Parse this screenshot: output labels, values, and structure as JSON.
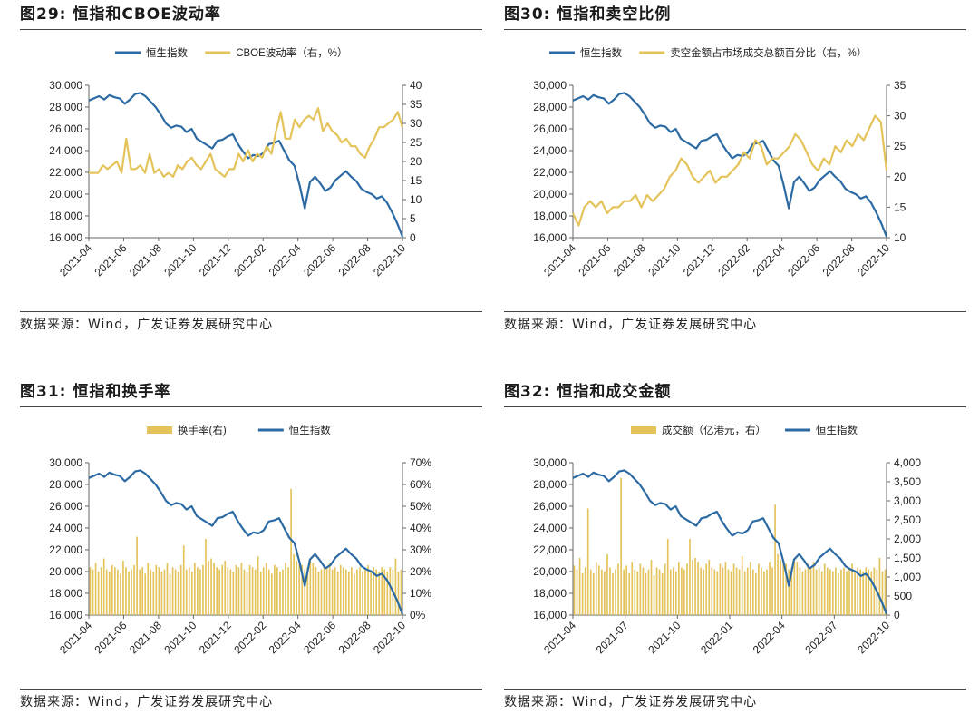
{
  "colors": {
    "blue": "#2b6aa3",
    "gold": "#e3c35a"
  },
  "panels": [
    {
      "title": "图29: 恒指和CBOE波动率",
      "source": "数据来源：Wind，广发证券发展研究中心",
      "chart_data": {
        "type": "line",
        "x_ticks": [
          "2021-04",
          "2021-06",
          "2021-08",
          "2021-10",
          "2021-12",
          "2022-02",
          "2022-04",
          "2022-06",
          "2022-08",
          "2022-10"
        ],
        "y_left": {
          "min": 16000,
          "max": 30000,
          "ticks": [
            "30,000",
            "28,000",
            "26,000",
            "24,000",
            "22,000",
            "20,000",
            "18,000",
            "16,000"
          ]
        },
        "y_right": {
          "min": 0,
          "max": 40,
          "ticks": [
            "40",
            "35",
            "30",
            "25",
            "20",
            "15",
            "10",
            "5",
            "0"
          ]
        },
        "series": [
          {
            "name": "恒生指数",
            "type": "line",
            "axis": "left",
            "color": "#2b6aa3",
            "values": [
              28600,
              28800,
              29000,
              28700,
              29100,
              28900,
              28800,
              28300,
              28700,
              29200,
              29300,
              29000,
              28500,
              28000,
              27300,
              26500,
              26100,
              26300,
              26200,
              25700,
              26000,
              25100,
              24800,
              24500,
              24200,
              24900,
              25000,
              25300,
              25500,
              24600,
              23900,
              23300,
              23600,
              23500,
              23800,
              24600,
              24700,
              24900,
              24000,
              23100,
              22600,
              20800,
              18700,
              21100,
              21600,
              21000,
              20300,
              20600,
              21300,
              21700,
              22100,
              21600,
              21200,
              20500,
              20200,
              20000,
              19600,
              19800,
              19200,
              18300,
              17300,
              16100
            ]
          },
          {
            "name": "CBOE波动率（右，%）",
            "type": "line",
            "axis": "right",
            "color": "#e3c35a",
            "values": [
              17,
              17,
              17,
              19,
              18,
              19,
              20,
              17,
              26,
              18,
              18,
              19,
              17,
              22,
              17,
              18,
              16,
              17,
              16,
              19,
              18,
              20,
              21,
              19,
              18,
              20,
              22,
              18,
              17,
              16,
              18,
              18,
              22,
              20,
              23,
              20,
              22,
              21,
              24,
              22,
              28,
              33,
              26,
              26,
              31,
              29,
              31,
              32,
              31,
              34,
              28,
              30,
              28,
              27,
              25,
              26,
              24,
              24,
              22,
              21,
              24,
              26,
              29,
              29,
              30,
              31,
              33,
              29
            ]
          }
        ]
      }
    },
    {
      "title": "图30: 恒指和卖空比例",
      "source": "数据来源：Wind，广发证券发展研究中心",
      "chart_data": {
        "type": "line",
        "x_ticks": [
          "2021-04",
          "2021-06",
          "2021-08",
          "2021-10",
          "2021-12",
          "2022-02",
          "2022-04",
          "2022-06",
          "2022-08",
          "2022-10"
        ],
        "y_left": {
          "min": 16000,
          "max": 30000,
          "ticks": [
            "30,000",
            "28,000",
            "26,000",
            "24,000",
            "22,000",
            "20,000",
            "18,000",
            "16,000"
          ]
        },
        "y_right": {
          "min": 10,
          "max": 35,
          "ticks": [
            "35",
            "30",
            "25",
            "20",
            "15",
            "10"
          ]
        },
        "series": [
          {
            "name": "恒生指数",
            "type": "line",
            "axis": "left",
            "color": "#2b6aa3",
            "values": [
              28600,
              28800,
              29000,
              28700,
              29100,
              28900,
              28800,
              28300,
              28700,
              29200,
              29300,
              29000,
              28500,
              28000,
              27300,
              26500,
              26100,
              26300,
              26200,
              25700,
              26000,
              25100,
              24800,
              24500,
              24200,
              24900,
              25000,
              25300,
              25500,
              24600,
              23900,
              23300,
              23600,
              23500,
              23800,
              24600,
              24700,
              24900,
              24000,
              23100,
              22600,
              20800,
              18700,
              21100,
              21600,
              21000,
              20300,
              20600,
              21300,
              21700,
              22100,
              21600,
              21200,
              20500,
              20200,
              20000,
              19600,
              19800,
              19200,
              18300,
              17300,
              16100
            ]
          },
          {
            "name": "卖空金额占市场成交总额百分比（右，%）",
            "type": "line",
            "axis": "right",
            "color": "#e3c35a",
            "values": [
              14,
              12,
              15,
              16,
              15,
              16,
              14,
              15,
              15,
              16,
              16,
              17,
              15,
              17,
              16,
              17,
              18,
              20,
              21,
              23,
              22,
              20,
              19,
              20,
              21,
              19,
              20,
              20,
              21,
              22,
              24,
              23,
              26,
              25,
              22,
              23,
              23,
              24,
              25,
              27,
              26,
              24,
              22,
              21,
              23,
              22,
              25,
              24,
              26,
              25,
              27,
              26,
              28,
              30,
              29,
              21
            ]
          }
        ]
      }
    },
    {
      "title": "图31: 恒指和换手率",
      "source": "数据来源：Wind，广发证券发展研究中心",
      "chart_data": {
        "type": "bar",
        "x_ticks": [
          "2021-04",
          "2021-06",
          "2021-08",
          "2021-10",
          "2021-12",
          "2022-02",
          "2022-04",
          "2022-06",
          "2022-08",
          "2022-10"
        ],
        "y_left": {
          "min": 16000,
          "max": 30000,
          "ticks": [
            "30,000",
            "28,000",
            "26,000",
            "24,000",
            "22,000",
            "20,000",
            "18,000",
            "16,000"
          ]
        },
        "y_right": {
          "min": 0,
          "max": 70,
          "ticks": [
            "70%",
            "60%",
            "50%",
            "40%",
            "30%",
            "20%",
            "10%",
            "0%"
          ]
        },
        "series": [
          {
            "name": "换手率(右)",
            "type": "bar",
            "axis": "right",
            "color": "#e3c35a",
            "values": [
              22,
              21,
              24,
              20,
              22,
              26,
              21,
              20,
              23,
              22,
              21,
              19,
              25,
              22,
              20,
              21,
              23,
              36,
              21,
              22,
              19,
              24,
              21,
              20,
              23,
              22,
              20,
              21,
              24,
              19,
              22,
              21,
              20,
              23,
              32,
              21,
              22,
              20,
              24,
              22,
              21,
              23,
              35,
              25,
              26,
              24,
              22,
              21,
              23,
              25,
              22,
              21,
              20,
              23,
              22,
              24,
              21,
              20,
              23,
              22,
              21,
              27,
              20,
              22,
              24,
              21,
              19,
              23,
              22,
              20,
              21,
              24,
              22,
              58,
              28,
              25,
              24,
              23,
              21,
              22,
              25,
              24,
              22,
              20,
              21,
              23,
              22,
              24,
              21,
              22,
              20,
              23,
              22,
              21,
              20,
              22,
              19,
              21,
              22,
              20,
              21,
              23,
              20,
              22,
              21,
              20,
              22,
              21,
              20,
              22,
              21,
              26,
              20,
              21
            ]
          },
          {
            "name": "恒生指数",
            "type": "line",
            "axis": "left",
            "color": "#2b6aa3",
            "values": [
              28600,
              28800,
              29000,
              28700,
              29100,
              28900,
              28800,
              28300,
              28700,
              29200,
              29300,
              29000,
              28500,
              28000,
              27300,
              26500,
              26100,
              26300,
              26200,
              25700,
              26000,
              25100,
              24800,
              24500,
              24200,
              24900,
              25000,
              25300,
              25500,
              24600,
              23900,
              23300,
              23600,
              23500,
              23800,
              24600,
              24700,
              24900,
              24000,
              23100,
              22600,
              20800,
              18700,
              21100,
              21600,
              21000,
              20300,
              20600,
              21300,
              21700,
              22100,
              21600,
              21200,
              20500,
              20200,
              20000,
              19600,
              19800,
              19200,
              18300,
              17300,
              16100
            ]
          }
        ]
      }
    },
    {
      "title": "图32: 恒指和成交金额",
      "source": "数据来源：Wind，广发证券发展研究中心",
      "chart_data": {
        "type": "bar",
        "x_ticks": [
          "2021-04",
          "2021-07",
          "2021-10",
          "2022-01",
          "2022-04",
          "2022-07",
          "2022-10"
        ],
        "y_left": {
          "min": 16000,
          "max": 30000,
          "ticks": [
            "30,000",
            "28,000",
            "26,000",
            "24,000",
            "22,000",
            "20,000",
            "18,000",
            "16,000"
          ]
        },
        "y_right": {
          "min": 0,
          "max": 4000,
          "ticks": [
            "4,000",
            "3,500",
            "3,000",
            "2,500",
            "2,000",
            "1,500",
            "1,000",
            "500",
            "0"
          ]
        },
        "series": [
          {
            "name": "成交额（亿港元，右）",
            "type": "bar",
            "axis": "right",
            "color": "#e3c35a",
            "values": [
              1300,
              1200,
              1500,
              1100,
              1250,
              2800,
              1200,
              1100,
              1400,
              1300,
              1200,
              1150,
              1600,
              1250,
              1100,
              1200,
              1350,
              3600,
              1200,
              1300,
              1100,
              1400,
              1200,
              1150,
              1350,
              1250,
              1100,
              1200,
              1450,
              1050,
              1250,
              1200,
              1100,
              1350,
              2000,
              1200,
              1250,
              1150,
              1400,
              1250,
              1200,
              1350,
              2000,
              1450,
              1500,
              1400,
              1250,
              1200,
              1350,
              1450,
              1250,
              1200,
              1150,
              1350,
              1250,
              1400,
              1200,
              1150,
              1350,
              1250,
              1200,
              1550,
              1150,
              1250,
              1400,
              1200,
              1100,
              1350,
              1250,
              1150,
              1200,
              1400,
              1250,
              2900,
              1600,
              1450,
              1400,
              1350,
              1200,
              1250,
              1450,
              1400,
              1250,
              1150,
              1200,
              1350,
              1250,
              1400,
              1200,
              1250,
              1150,
              1350,
              1250,
              1200,
              1150,
              1250,
              1100,
              1200,
              1250,
              1150,
              1200,
              1350,
              1150,
              1250,
              1200,
              1150,
              1250,
              1200,
              1150,
              1250,
              1200,
              1500,
              1150,
              1200
            ]
          },
          {
            "name": "恒生指数",
            "type": "line",
            "axis": "left",
            "color": "#2b6aa3",
            "values": [
              28600,
              28800,
              29000,
              28700,
              29100,
              28900,
              28800,
              28300,
              28700,
              29200,
              29300,
              29000,
              28500,
              28000,
              27300,
              26500,
              26100,
              26300,
              26200,
              25700,
              26000,
              25100,
              24800,
              24500,
              24200,
              24900,
              25000,
              25300,
              25500,
              24600,
              23900,
              23300,
              23600,
              23500,
              23800,
              24600,
              24700,
              24900,
              24000,
              23100,
              22600,
              20800,
              18700,
              21100,
              21600,
              21000,
              20300,
              20600,
              21300,
              21700,
              22100,
              21600,
              21200,
              20500,
              20200,
              20000,
              19600,
              19800,
              19200,
              18300,
              17300,
              16100
            ]
          }
        ]
      }
    }
  ]
}
